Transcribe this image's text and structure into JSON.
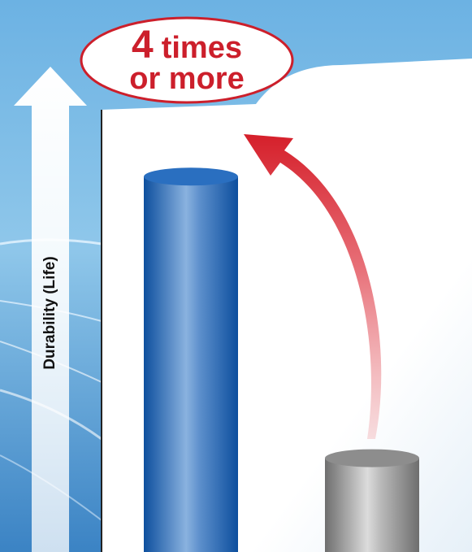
{
  "chart_data": {
    "type": "bar",
    "categories": [
      "",
      ""
    ],
    "series": [
      {
        "values": [
          4,
          1
        ]
      }
    ],
    "value_colors": [
      "#1f66b4",
      "#9a9a9a"
    ],
    "ylabel": "Durability (Life)",
    "ylim": [
      0,
      4.6
    ],
    "grid": false,
    "annotation": {
      "value_line1": "4",
      "word_line1": "times",
      "line2": "or more",
      "color": "#cc1f2b"
    }
  },
  "colors": {
    "background_top": "#5fa6dc",
    "panel": "#ffffff",
    "arrow_red": "#d6242d",
    "blue_bar": "#1f66b4",
    "gray_bar": "#9a9a9a"
  }
}
